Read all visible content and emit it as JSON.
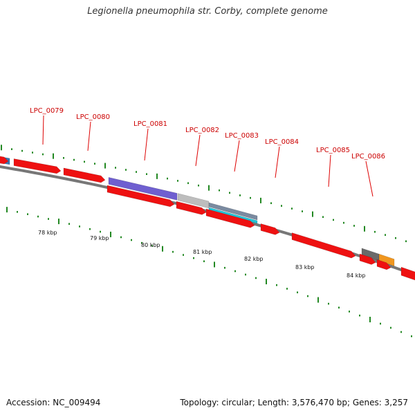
{
  "title": "Legionella pneumophila str. Corby, complete genome",
  "footer": {
    "accession": "Accession: NC_009494",
    "summary": "Topology: circular; Length: 3,576,470 bp; Genes: 3,257"
  },
  "genes": [
    {
      "label": "LPC_0079"
    },
    {
      "label": "LPC_0080"
    },
    {
      "label": "LPC_0081"
    },
    {
      "label": "LPC_0082"
    },
    {
      "label": "LPC_0083"
    },
    {
      "label": "LPC_0084"
    },
    {
      "label": "LPC_0085"
    },
    {
      "label": "LPC_0086"
    }
  ],
  "kbp_labels": [
    "78 kbp",
    "79 kbp",
    "80 kbp",
    "81 kbp",
    "82 kbp",
    "83 kbp",
    "84 kbp"
  ],
  "colors": {
    "cds": "#ee1111",
    "gene_label": "#cc0000",
    "backbone": "#777777",
    "tick": "#228822",
    "feature_purple": "#6f5fd0",
    "feature_gray": "#bdbdbd",
    "feature_steel": "#7a8aa0",
    "feature_cyan": "#22c4d8",
    "feature_orange": "#f0961e",
    "feature_dark": "#6a6a6a",
    "feature_blue": "#3a78b0"
  }
}
